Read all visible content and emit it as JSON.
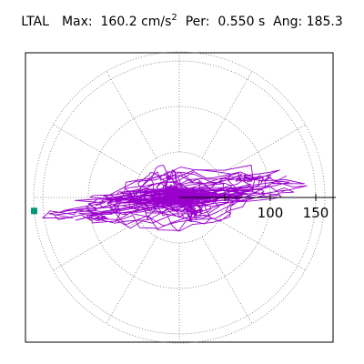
{
  "header": {
    "station": "LTAL",
    "max_label": "Max:",
    "max_value": "160.2",
    "max_unit": "cm/s",
    "max_unit_exp": "2",
    "per_label": "Per:",
    "per_value": "0.550",
    "per_unit": "s",
    "ang_label": "Ang:",
    "ang_value": "185.3"
  },
  "chart_data": {
    "type": "polar-trace",
    "radial_axis": {
      "tick_labels": [
        "100",
        "150"
      ],
      "tick_values": [
        50,
        100,
        150
      ],
      "range": [
        0,
        160
      ]
    },
    "angular_grid_deg": [
      0,
      30,
      60,
      90,
      120,
      150,
      180,
      210,
      240,
      270,
      300,
      330
    ],
    "grid_style": "dotted",
    "trace_color": "#9900cc",
    "marker": {
      "color": "#009977",
      "shape": "square",
      "radius": 160.2,
      "angle_deg": 185.3
    },
    "max_amplitude": 160.2,
    "max_angle_deg": 185.3
  }
}
